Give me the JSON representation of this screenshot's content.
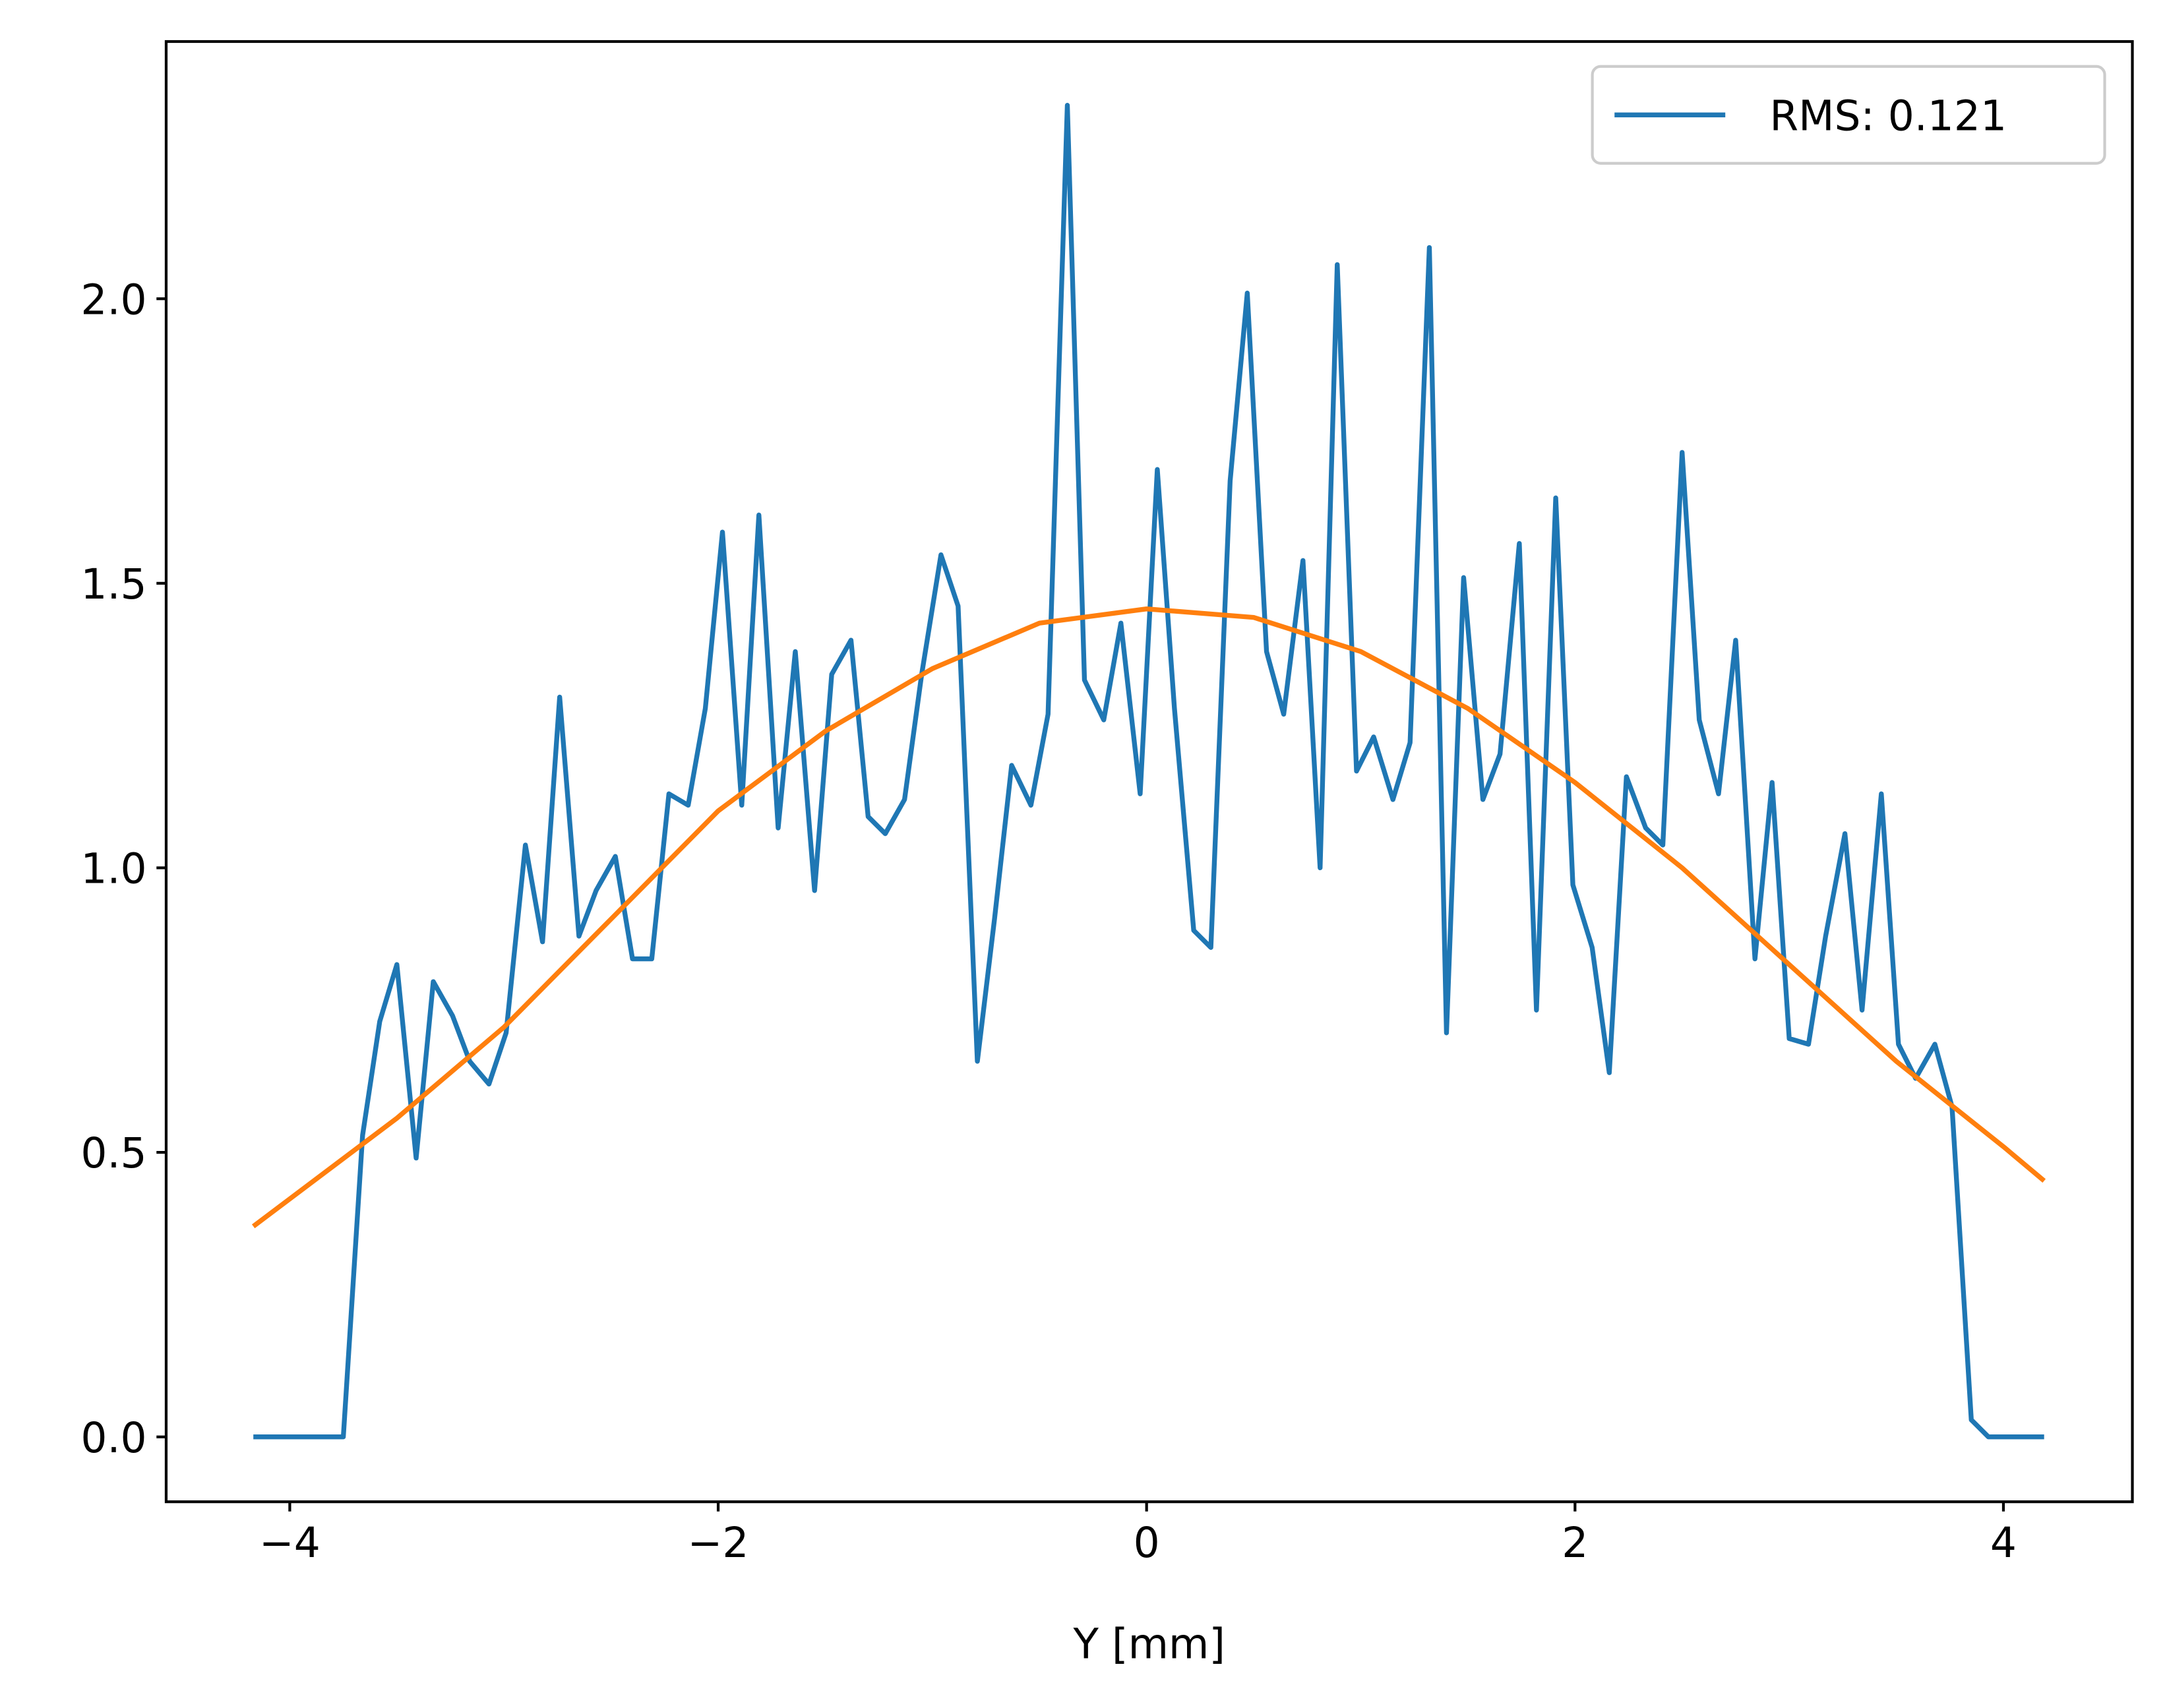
{
  "chart_data": {
    "type": "line",
    "xlabel": "Y [mm]",
    "series": [
      {
        "name": "RMS: 0.121",
        "color": "#1f77b4",
        "x": [
          -4.17,
          -4.09,
          -4.0,
          -3.92,
          -3.83,
          -3.75,
          -3.66,
          -3.58,
          -3.5,
          -3.41,
          -3.33,
          -3.24,
          -3.16,
          -3.07,
          -2.99,
          -2.9,
          -2.82,
          -2.74,
          -2.65,
          -2.57,
          -2.48,
          -2.4,
          -2.31,
          -2.23,
          -2.14,
          -2.06,
          -1.98,
          -1.89,
          -1.81,
          -1.72,
          -1.64,
          -1.55,
          -1.47,
          -1.38,
          -1.3,
          -1.22,
          -1.13,
          -1.05,
          -0.96,
          -0.88,
          -0.79,
          -0.71,
          -0.63,
          -0.54,
          -0.46,
          -0.37,
          -0.29,
          -0.2,
          -0.12,
          -0.03,
          0.05,
          0.13,
          0.22,
          0.3,
          0.39,
          0.47,
          0.56,
          0.64,
          0.73,
          0.81,
          0.89,
          0.98,
          1.06,
          1.15,
          1.23,
          1.32,
          1.4,
          1.48,
          1.57,
          1.65,
          1.74,
          1.82,
          1.91,
          1.99,
          2.08,
          2.16,
          2.24,
          2.33,
          2.41,
          2.5,
          2.58,
          2.67,
          2.75,
          2.84,
          2.92,
          3.0,
          3.09,
          3.17,
          3.26,
          3.34,
          3.43,
          3.51,
          3.59,
          3.68,
          3.76,
          3.85,
          3.93,
          4.02,
          4.1,
          4.19
        ],
        "values": [
          0,
          0,
          0,
          0,
          0,
          0,
          0.53,
          0.73,
          0.83,
          0.49,
          0.8,
          0.74,
          0.66,
          0.62,
          0.71,
          1.04,
          0.87,
          1.3,
          0.88,
          0.96,
          1.02,
          0.84,
          0.84,
          1.13,
          1.11,
          1.28,
          1.59,
          1.11,
          1.62,
          1.07,
          1.38,
          0.96,
          1.34,
          1.4,
          1.09,
          1.06,
          1.12,
          1.34,
          1.55,
          1.46,
          0.66,
          0.91,
          1.18,
          1.11,
          1.27,
          2.34,
          1.33,
          1.26,
          1.43,
          1.13,
          1.7,
          1.28,
          0.89,
          0.86,
          1.68,
          2.01,
          1.38,
          1.27,
          1.54,
          1.0,
          2.06,
          1.17,
          1.23,
          1.12,
          1.22,
          2.09,
          0.71,
          1.51,
          1.12,
          1.2,
          1.57,
          0.75,
          1.65,
          0.97,
          0.86,
          0.64,
          1.16,
          1.07,
          1.04,
          1.73,
          1.26,
          1.13,
          1.4,
          0.84,
          1.15,
          0.7,
          0.69,
          0.88,
          1.06,
          0.75,
          1.13,
          0.69,
          0.63,
          0.69,
          0.58,
          0.03,
          0,
          0,
          0,
          0
        ]
      },
      {
        "color": "#ff7f0e",
        "x": [
          -4.17,
          -3.5,
          -3,
          -2.5,
          -2,
          -1.5,
          -1,
          -0.5,
          0,
          0.5,
          1,
          1.5,
          2,
          2.5,
          3,
          3.5,
          4,
          4.19
        ],
        "values": [
          0.37,
          0.56,
          0.72,
          0.91,
          1.1,
          1.24,
          1.35,
          1.43,
          1.455,
          1.44,
          1.38,
          1.28,
          1.15,
          1.0,
          0.83,
          0.66,
          0.51,
          0.45
        ]
      }
    ],
    "xlim": [
      -4.577,
      4.602
    ],
    "ylim": [
      -0.114,
      2.452
    ],
    "xticks": [
      {
        "value": -4,
        "label": "−4"
      },
      {
        "value": -2,
        "label": "−2"
      },
      0,
      2,
      4
    ],
    "yticks": [
      {
        "value": 0,
        "label": "0.0"
      },
      0.5,
      {
        "value": 1,
        "label": "1.0"
      },
      1.5,
      {
        "value": 2,
        "label": "2.0"
      }
    ],
    "legend": "upper right",
    "grid": false
  }
}
